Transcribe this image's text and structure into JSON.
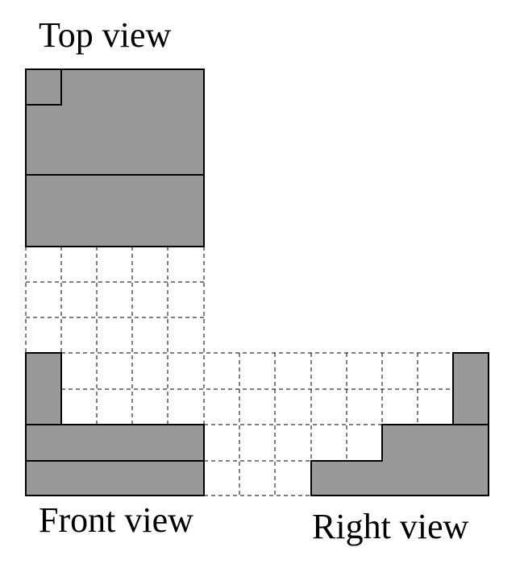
{
  "labels": {
    "top": "Top view",
    "front": "Front view",
    "right": "Right view"
  },
  "colors": {
    "fill": "#999999",
    "stroke": "#000000",
    "background": "#ffffff"
  }
}
